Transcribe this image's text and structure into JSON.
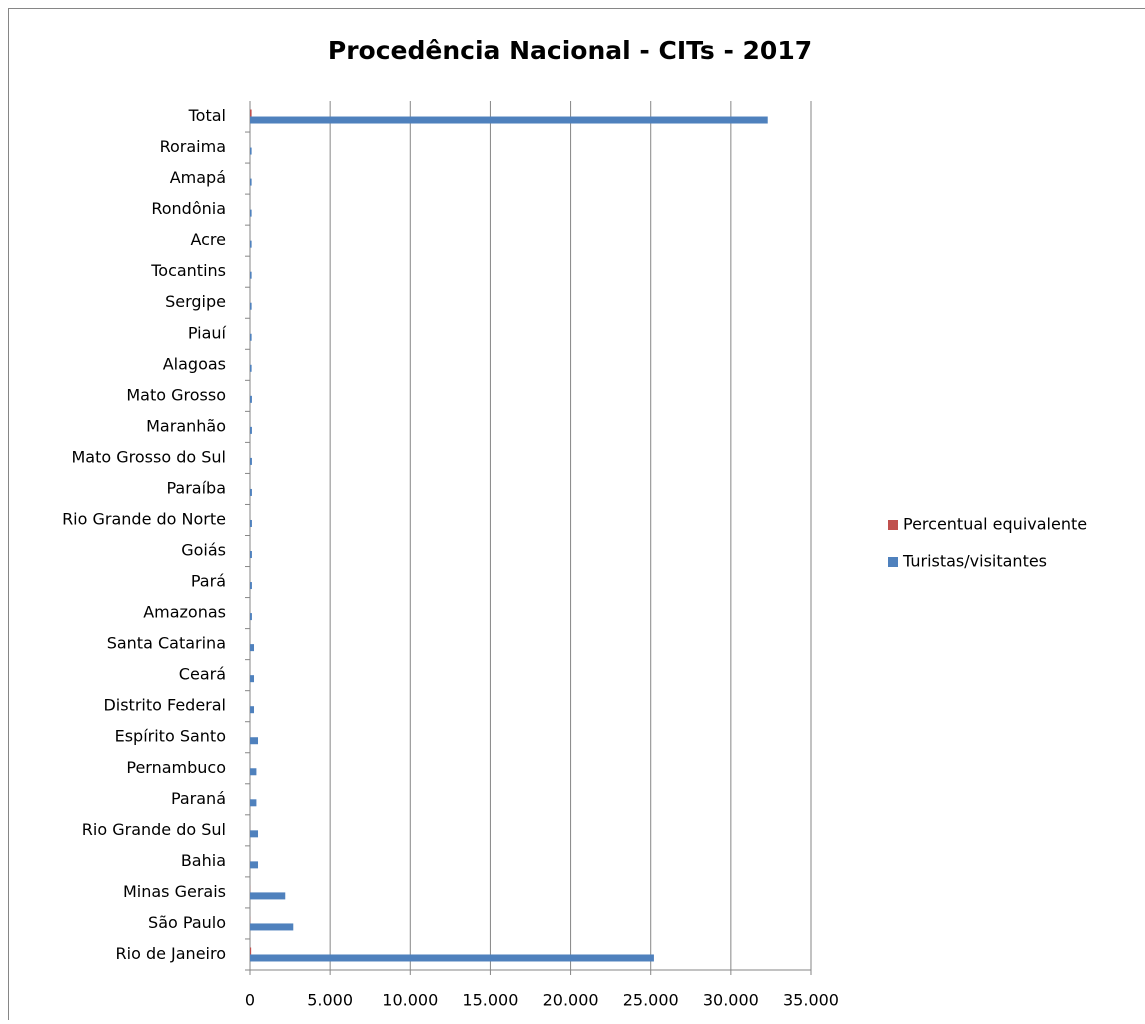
{
  "chart_data": {
    "type": "bar",
    "orientation": "horizontal",
    "title": "Procedência Nacional - CITs - 2017",
    "categories": [
      "Rio de Janeiro",
      "São Paulo",
      "Minas Gerais",
      "Bahia",
      "Rio Grande do Sul",
      "Paraná",
      "Pernambuco",
      "Espírito Santo",
      "Distrito Federal",
      "Ceará",
      "Santa Catarina",
      "Amazonas",
      "Pará",
      "Goiás",
      "Rio Grande do Norte",
      "Paraíba",
      "Mato Grosso do Sul",
      "Maranhão",
      "Mato Grosso",
      "Alagoas",
      "Piauí",
      "Sergipe",
      "Tocantins",
      "Acre",
      "Rondônia",
      "Amapá",
      "Roraima",
      "Total"
    ],
    "series": [
      {
        "name": "Percentual equivalente",
        "color": "#c0504d",
        "values": [
          72,
          8.5,
          7,
          1.5,
          1.5,
          1.2,
          1.2,
          1.5,
          0.8,
          0.8,
          0.8,
          0.4,
          0.4,
          0.4,
          0.4,
          0.4,
          0.4,
          0.4,
          0.4,
          0.3,
          0.3,
          0.3,
          0.3,
          0.3,
          0.3,
          0.3,
          0.3,
          100
        ]
      },
      {
        "name": "Turistas/visitantes",
        "color": "#4f81bd",
        "values": [
          25200,
          2700,
          2200,
          500,
          500,
          400,
          400,
          500,
          250,
          250,
          250,
          120,
          120,
          120,
          120,
          120,
          120,
          120,
          120,
          100,
          100,
          100,
          100,
          100,
          100,
          100,
          100,
          32300
        ]
      }
    ],
    "xlim": [
      0,
      35000
    ],
    "xticks": [
      0,
      {
        "value": 5000,
        "label": "5.000"
      },
      {
        "value": 10000,
        "label": "10.000"
      },
      {
        "value": 15000,
        "label": "15.000"
      },
      {
        "value": 20000,
        "label": "20.000"
      },
      {
        "value": 25000,
        "label": "25.000"
      },
      {
        "value": 30000,
        "label": "30.000"
      },
      {
        "value": 35000,
        "label": "35.000"
      }
    ],
    "grid": true,
    "legend": "right"
  }
}
